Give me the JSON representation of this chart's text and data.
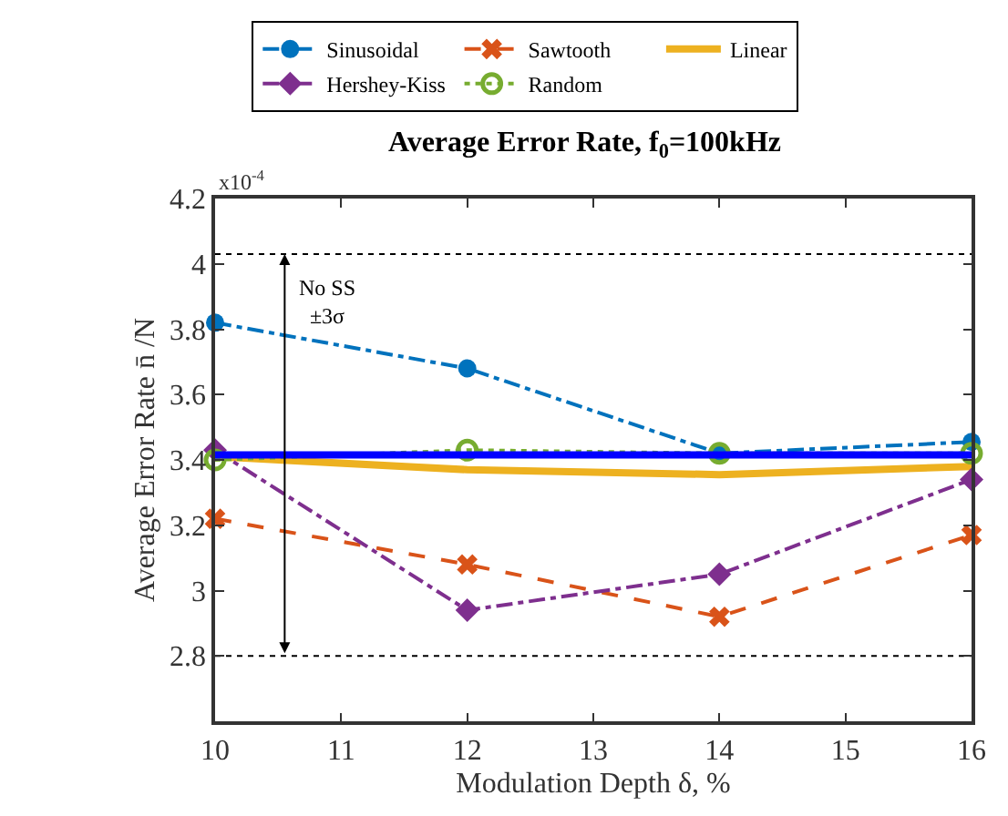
{
  "chart_data": {
    "type": "line",
    "title": "Average Error Rate, f$_{0}$=100kHz",
    "xlabel": "Modulation Depth δ, %",
    "ylabel": "Average Error Rate n̄ /N",
    "x": [
      10,
      12,
      14,
      16
    ],
    "series": [
      {
        "name": "Sinusoidal",
        "color": "#0072bd",
        "values": [
          3.82,
          3.68,
          3.42,
          3.455
        ],
        "marker": "circle",
        "line_style": "dashdot"
      },
      {
        "name": "Sawtooth",
        "color": "#d95319",
        "values": [
          3.22,
          3.08,
          2.92,
          3.17
        ],
        "marker": "cross",
        "line_style": "dashed"
      },
      {
        "name": "Linear",
        "color": "#edb120",
        "values": [
          3.41,
          3.37,
          3.355,
          3.38
        ],
        "marker": "none",
        "line_style": "solid"
      },
      {
        "name": "Hershey-Kiss",
        "color": "#7e2f8e",
        "values": [
          3.43,
          2.94,
          3.05,
          3.34
        ],
        "marker": "diamond",
        "line_style": "dashdot"
      },
      {
        "name": "Random",
        "color": "#77ac30",
        "values": [
          3.4,
          3.43,
          3.42,
          3.42
        ],
        "marker": "circle",
        "line_style": "dotted"
      },
      {
        "color": "#0000ff",
        "x": [
          10,
          16
        ],
        "values": [
          3.415,
          3.415
        ],
        "marker": "none",
        "line_style": "solid"
      }
    ],
    "xlim": [
      10,
      16
    ],
    "xticks": [
      10,
      11,
      12,
      13,
      14,
      15,
      16
    ],
    "ylim": [
      2.6,
      4.2
    ],
    "yticks": [
      {
        "value": 2.6,
        "label": null
      },
      2.8,
      3,
      3.2,
      3.4,
      3.6,
      3.8,
      4,
      4.2
    ],
    "ref_lines": [
      {
        "axis": "y",
        "value": 4.03,
        "label": null,
        "color": "#000000",
        "line_style": "dotted"
      },
      {
        "axis": "y",
        "value": 2.8,
        "label": null,
        "color": "#000000",
        "line_style": "dotted"
      }
    ],
    "annotations": [
      "x10$^{-4}$",
      "No SS\n±3σ"
    ],
    "legend": "top"
  }
}
